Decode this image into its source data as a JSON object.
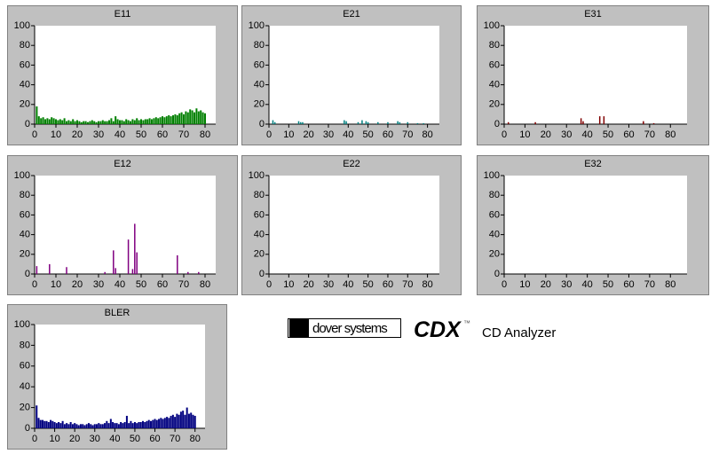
{
  "chart_data": [
    {
      "type": "bar",
      "title": "E11",
      "color": "#008000",
      "x": [
        1,
        2,
        3,
        4,
        5,
        6,
        7,
        8,
        9,
        10,
        11,
        12,
        13,
        14,
        15,
        16,
        17,
        18,
        19,
        20,
        21,
        22,
        23,
        24,
        25,
        26,
        27,
        28,
        29,
        30,
        31,
        32,
        33,
        34,
        35,
        36,
        37,
        38,
        39,
        40,
        41,
        42,
        43,
        44,
        45,
        46,
        47,
        48,
        49,
        50,
        51,
        52,
        53,
        54,
        55,
        56,
        57,
        58,
        59,
        60,
        61,
        62,
        63,
        64,
        65,
        66,
        67,
        68,
        69,
        70,
        71,
        72,
        73,
        74,
        75,
        76,
        77,
        78,
        79,
        80
      ],
      "values": [
        18,
        8,
        6,
        7,
        5,
        6,
        5,
        7,
        6,
        5,
        4,
        5,
        4,
        6,
        3,
        4,
        3,
        5,
        3,
        4,
        3,
        2,
        3,
        3,
        2,
        3,
        4,
        3,
        2,
        3,
        3,
        4,
        3,
        3,
        4,
        6,
        3,
        8,
        5,
        4,
        4,
        3,
        5,
        4,
        3,
        5,
        4,
        6,
        4,
        5,
        4,
        5,
        5,
        6,
        5,
        6,
        7,
        6,
        7,
        8,
        7,
        8,
        9,
        8,
        9,
        10,
        9,
        11,
        12,
        10,
        13,
        12,
        15,
        14,
        12,
        16,
        13,
        14,
        12,
        11
      ],
      "xlim": [
        0,
        85
      ],
      "ylim": [
        0,
        100
      ],
      "xticks": [
        0,
        10,
        20,
        30,
        40,
        50,
        60,
        70,
        80
      ],
      "yticks": [
        0,
        20,
        40,
        60,
        80,
        100
      ]
    },
    {
      "type": "bar",
      "title": "E21",
      "color": "#008080",
      "x": [
        2,
        3,
        15,
        16,
        17,
        38,
        39,
        45,
        47,
        49,
        50,
        55,
        60,
        65,
        66,
        70,
        75,
        78
      ],
      "values": [
        4,
        2,
        3,
        2,
        2,
        4,
        3,
        2,
        4,
        3,
        2,
        2,
        2,
        3,
        2,
        2,
        1,
        1
      ],
      "xlim": [
        0,
        86
      ],
      "ylim": [
        0,
        100
      ],
      "xticks": [
        0,
        10,
        20,
        30,
        40,
        50,
        60,
        70,
        80
      ],
      "yticks": [
        0,
        20,
        40,
        60,
        80,
        100
      ]
    },
    {
      "type": "bar",
      "title": "E31",
      "color": "#800000",
      "x": [
        2,
        15,
        37,
        38,
        46,
        48,
        67,
        72
      ],
      "values": [
        2,
        2,
        6,
        3,
        8,
        8,
        3,
        1
      ],
      "xlim": [
        0,
        88
      ],
      "ylim": [
        0,
        100
      ],
      "xticks": [
        0,
        10,
        20,
        30,
        40,
        50,
        60,
        70,
        80
      ],
      "yticks": [
        0,
        20,
        40,
        60,
        80,
        100
      ]
    },
    {
      "type": "bar",
      "title": "E12",
      "color": "#800080",
      "x": [
        1,
        7,
        15,
        33,
        37,
        38,
        44,
        46,
        47,
        48,
        67,
        72,
        77
      ],
      "values": [
        8,
        10,
        7,
        2,
        24,
        6,
        35,
        5,
        51,
        22,
        19,
        2,
        2
      ],
      "xlim": [
        0,
        85
      ],
      "ylim": [
        0,
        100
      ],
      "xticks": [
        0,
        10,
        20,
        30,
        40,
        50,
        60,
        70,
        80
      ],
      "yticks": [
        0,
        20,
        40,
        60,
        80,
        100
      ]
    },
    {
      "type": "bar",
      "title": "E22",
      "x": [],
      "values": [],
      "xlim": [
        0,
        86
      ],
      "ylim": [
        0,
        100
      ],
      "xticks": [
        0,
        10,
        20,
        30,
        40,
        50,
        60,
        70,
        80
      ],
      "yticks": [
        0,
        20,
        40,
        60,
        80,
        100
      ]
    },
    {
      "type": "bar",
      "title": "E32",
      "x": [],
      "values": [],
      "xlim": [
        0,
        88
      ],
      "ylim": [
        0,
        100
      ],
      "xticks": [
        0,
        10,
        20,
        30,
        40,
        50,
        60,
        70,
        80
      ],
      "yticks": [
        0,
        20,
        40,
        60,
        80,
        100
      ]
    },
    {
      "type": "bar",
      "title": "BLER",
      "color": "#000080",
      "x": [
        1,
        2,
        3,
        4,
        5,
        6,
        7,
        8,
        9,
        10,
        11,
        12,
        13,
        14,
        15,
        16,
        17,
        18,
        19,
        20,
        21,
        22,
        23,
        24,
        25,
        26,
        27,
        28,
        29,
        30,
        31,
        32,
        33,
        34,
        35,
        36,
        37,
        38,
        39,
        40,
        41,
        42,
        43,
        44,
        45,
        46,
        47,
        48,
        49,
        50,
        51,
        52,
        53,
        54,
        55,
        56,
        57,
        58,
        59,
        60,
        61,
        62,
        63,
        64,
        65,
        66,
        67,
        68,
        69,
        70,
        71,
        72,
        73,
        74,
        75,
        76,
        77,
        78,
        79,
        80
      ],
      "values": [
        22,
        10,
        8,
        8,
        7,
        7,
        6,
        8,
        7,
        6,
        5,
        6,
        5,
        7,
        4,
        5,
        4,
        6,
        4,
        5,
        4,
        3,
        4,
        4,
        3,
        4,
        5,
        4,
        3,
        4,
        4,
        5,
        4,
        4,
        5,
        7,
        5,
        9,
        6,
        5,
        5,
        4,
        6,
        5,
        6,
        12,
        5,
        7,
        5,
        6,
        5,
        6,
        6,
        7,
        6,
        7,
        8,
        7,
        8,
        9,
        8,
        9,
        10,
        9,
        10,
        11,
        10,
        12,
        13,
        11,
        14,
        13,
        16,
        17,
        13,
        20,
        14,
        15,
        13,
        12
      ],
      "xlim": [
        0,
        85
      ],
      "ylim": [
        0,
        100
      ],
      "xticks": [
        0,
        10,
        20,
        30,
        40,
        50,
        60,
        70,
        80
      ],
      "yticks": [
        0,
        20,
        40,
        60,
        80,
        100
      ]
    }
  ],
  "logo": {
    "company": "dover systems",
    "product": "CDX",
    "trademark": "™",
    "tagline": "CD Analyzer"
  }
}
